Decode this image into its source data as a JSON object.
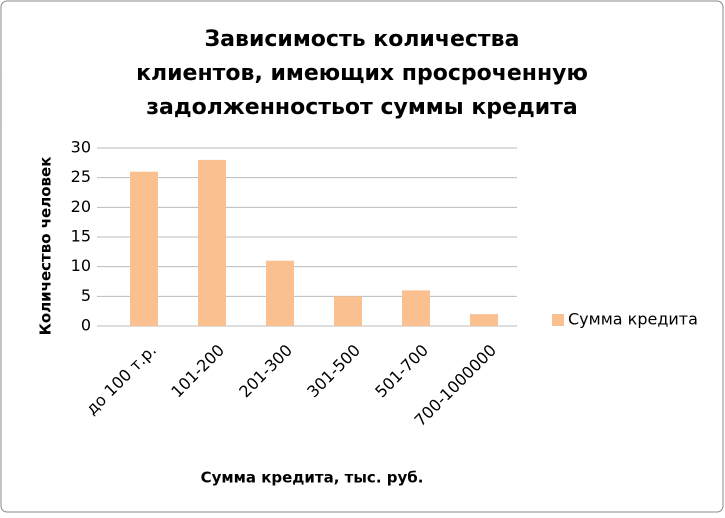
{
  "chart_data": {
    "type": "bar",
    "title": [
      "Зависимость количества",
      "клиентов, имеющих просроченную",
      "задолженностьот суммы кредита"
    ],
    "x_label": "Сумма кредита, тыс. руб.",
    "y_label": "Количество человек",
    "categories": [
      "до 100 т.р.",
      "101-200",
      "201-300",
      "301-500",
      "501-700",
      "700-1000000"
    ],
    "series": [
      {
        "name": "Сумма кредита",
        "color": "#fac090",
        "values": [
          26,
          28,
          11,
          5,
          6,
          2
        ]
      }
    ],
    "ylim": [
      0,
      30
    ],
    "yticks": [
      0,
      5,
      10,
      15,
      20,
      25,
      30
    ],
    "grid": true,
    "legend": "right"
  }
}
